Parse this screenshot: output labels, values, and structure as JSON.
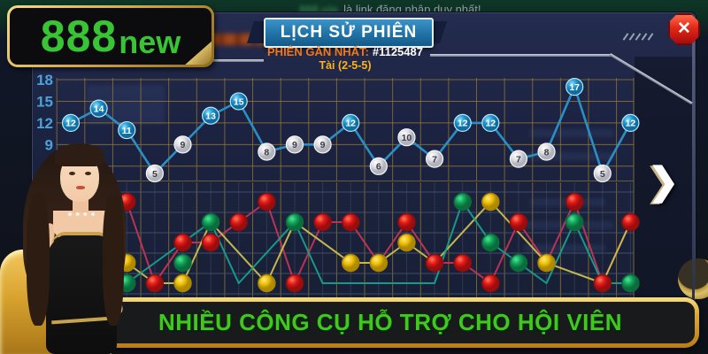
{
  "logo": {
    "part_888": "888",
    "part_new": "new"
  },
  "marquee": {
    "blurred_link": "888.vip",
    "text": "là link đăng nhập duy nhất!"
  },
  "modal": {
    "title": "LỊCH SỬ PHIÊN",
    "session_label": "PHIÊN GẦN NHẤT:",
    "session_id": "#1125487",
    "latest_result": "Tài (2-5-5)",
    "close_glyph": "✕"
  },
  "nav": {
    "next_glyph": "❯"
  },
  "banner": {
    "text": "NHIỀU CÔNG CỤ HỖ TRỢ CHO HỘI VIÊN"
  },
  "colors": {
    "accent_green": "#38c434",
    "banner_green": "#41c81e",
    "title_blue": "#2072a6",
    "label_orange": "#f07818",
    "result_gold": "#ffb31a",
    "tick_blue": "#4ba3d9",
    "grid_tan": "#8f7434",
    "grid_gray": "#4a5470",
    "line_blue": "#2b8fc4",
    "dot_red": "#d41414",
    "dot_green": "#12a158",
    "dot_yellow": "#e8b800",
    "line_crimson": "#c23558",
    "line_yellow": "#cfc04e",
    "line_teal": "#16a08e"
  },
  "chart_data": [
    {
      "type": "line",
      "name": "dice-sum-history",
      "values": [
        12,
        14,
        11,
        5,
        9,
        13,
        15,
        8,
        9,
        9,
        12,
        6,
        10,
        7,
        12,
        12,
        7,
        8,
        17,
        5,
        12
      ],
      "point_rule": "blue point when value >= 11 (Tài), white point when value <= 10 (Xỉu)",
      "y_ticks": [
        18,
        15,
        12,
        9
      ],
      "ylim": [
        3,
        19
      ],
      "grid": true,
      "legend": "none"
    },
    {
      "type": "scatter-line",
      "name": "result-pattern",
      "level_count": 5,
      "dots": [
        [
          2,
          0,
          "red"
        ],
        [
          2,
          3,
          "yellow"
        ],
        [
          2,
          4,
          "green"
        ],
        [
          3,
          4,
          "red"
        ],
        [
          4,
          2,
          "red"
        ],
        [
          4,
          3,
          "green"
        ],
        [
          4,
          4,
          "yellow"
        ],
        [
          5,
          1,
          "green"
        ],
        [
          5,
          2,
          "red"
        ],
        [
          6,
          1,
          "red"
        ],
        [
          7,
          0,
          "red"
        ],
        [
          7,
          4,
          "yellow"
        ],
        [
          8,
          1,
          "green"
        ],
        [
          8,
          4,
          "red"
        ],
        [
          9,
          1,
          "red"
        ],
        [
          10,
          1,
          "red"
        ],
        [
          10,
          3,
          "yellow"
        ],
        [
          11,
          3,
          "yellow"
        ],
        [
          12,
          1,
          "red"
        ],
        [
          12,
          2,
          "yellow"
        ],
        [
          13,
          3,
          "red"
        ],
        [
          14,
          0,
          "green"
        ],
        [
          14,
          3,
          "red"
        ],
        [
          15,
          0,
          "yellow"
        ],
        [
          15,
          2,
          "green"
        ],
        [
          15,
          4,
          "red"
        ],
        [
          16,
          1,
          "red"
        ],
        [
          16,
          3,
          "green"
        ],
        [
          17,
          3,
          "yellow"
        ],
        [
          18,
          0,
          "red"
        ],
        [
          18,
          1,
          "green"
        ],
        [
          19,
          4,
          "red"
        ],
        [
          20,
          1,
          "red"
        ],
        [
          20,
          4,
          "green"
        ]
      ],
      "series": [
        {
          "name": "crimson",
          "path": [
            [
              1,
              3
            ],
            [
              2,
              0
            ],
            [
              3,
              4
            ],
            [
              4,
              2
            ],
            [
              5,
              2
            ],
            [
              6,
              1
            ],
            [
              7,
              0
            ],
            [
              8,
              4
            ],
            [
              9,
              1
            ],
            [
              10,
              1
            ],
            [
              11,
              3
            ],
            [
              12,
              1
            ],
            [
              13,
              3
            ],
            [
              14,
              3
            ],
            [
              15,
              4
            ],
            [
              16,
              1
            ],
            [
              17,
              3
            ],
            [
              18,
              0
            ],
            [
              19,
              4
            ],
            [
              20,
              1
            ]
          ]
        },
        {
          "name": "yellow",
          "path": [
            [
              2,
              3
            ],
            [
              3,
              4
            ],
            [
              4,
              4
            ],
            [
              5,
              1
            ],
            [
              7,
              4
            ],
            [
              8,
              1
            ],
            [
              10,
              3
            ],
            [
              11,
              3
            ],
            [
              12,
              2
            ],
            [
              13,
              3
            ],
            [
              15,
              0
            ],
            [
              17,
              3
            ],
            [
              19,
              4
            ],
            [
              20,
              1
            ]
          ]
        },
        {
          "name": "teal",
          "path": [
            [
              1,
              2
            ],
            [
              2,
              4
            ],
            [
              5,
              1
            ],
            [
              6,
              4
            ],
            [
              8,
              1
            ],
            [
              9,
              4
            ],
            [
              13,
              4
            ],
            [
              14,
              0
            ],
            [
              15,
              2
            ],
            [
              16,
              3
            ],
            [
              17,
              4
            ],
            [
              18,
              1
            ],
            [
              19,
              4
            ],
            [
              20,
              4
            ]
          ]
        }
      ]
    }
  ]
}
